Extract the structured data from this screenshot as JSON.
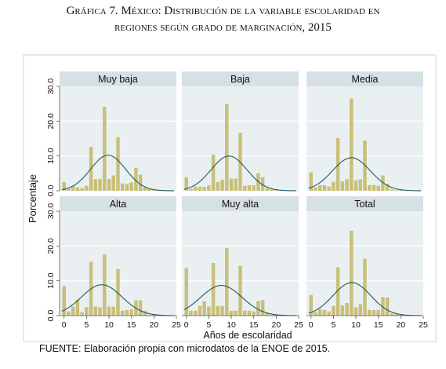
{
  "title_lines": [
    "Gráfica 7. México: Distribución de la variable escolaridad en",
    "regiones según grado de marginación, 2015"
  ],
  "source": "FUENTE: Elaboración propia con microdatos de la ENOE de 2015.",
  "colors": {
    "bar": "#c9bf79",
    "curve": "#1f5b5b",
    "panel_bg": "#eaf0f2",
    "strip_bg": "#d6e1e6"
  },
  "chart_data": {
    "type": "bar",
    "ylabel": "Porcentaje",
    "xlabel": "Años de escolaridad",
    "xlim": [
      -1,
      25
    ],
    "ylim": [
      0,
      30
    ],
    "xticks": [
      0,
      5,
      10,
      15,
      20,
      25
    ],
    "yticks": [
      "0.0",
      "10.0",
      "20.0",
      "30.0"
    ],
    "x": [
      0,
      1,
      2,
      3,
      4,
      5,
      6,
      7,
      8,
      9,
      10,
      11,
      12,
      13,
      14,
      15,
      16,
      17,
      18,
      19,
      20,
      21,
      22,
      23,
      24
    ],
    "grid": true,
    "panels": [
      {
        "name": "Muy baja",
        "mean": 9.8,
        "sd": 3.9,
        "values": [
          2.5,
          0.6,
          1.4,
          1.0,
          0.8,
          1.4,
          12.6,
          3.3,
          3.4,
          24.1,
          3.4,
          4.4,
          15.4,
          2.1,
          1.9,
          2.4,
          6.6,
          4.6,
          1.0,
          0.6,
          0.2,
          0,
          0,
          0,
          0
        ]
      },
      {
        "name": "Baja",
        "mean": 9.5,
        "sd": 4.0,
        "values": [
          3.9,
          0.5,
          1.2,
          1.2,
          1.1,
          1.6,
          10.4,
          2.5,
          3.1,
          25.0,
          3.5,
          3.5,
          16.7,
          1.4,
          1.6,
          1.6,
          5.1,
          3.9,
          0.7,
          0.4,
          0.2,
          0,
          0,
          0,
          0
        ]
      },
      {
        "name": "Media",
        "mean": 9.0,
        "sd": 4.2,
        "values": [
          5.3,
          1.0,
          1.6,
          1.6,
          1.2,
          2.6,
          15.1,
          2.7,
          3.3,
          26.5,
          3.0,
          3.3,
          14.4,
          1.6,
          1.6,
          1.4,
          4.4,
          2.0,
          0.4,
          0.2,
          0.2,
          0,
          0,
          0,
          0
        ]
      },
      {
        "name": "Alta",
        "mean": 8.4,
        "sd": 4.5,
        "values": [
          8.5,
          1.2,
          2.6,
          4.6,
          1.0,
          2.4,
          15.5,
          2.6,
          2.4,
          17.6,
          2.6,
          2.6,
          13.4,
          1.4,
          1.6,
          1.8,
          4.4,
          4.4,
          1.4,
          0.2,
          0.2,
          0,
          0,
          0,
          0
        ]
      },
      {
        "name": "Muy alta",
        "mean": 7.8,
        "sd": 4.6,
        "values": [
          13.7,
          1.4,
          1.4,
          2.8,
          4.1,
          2.6,
          15.1,
          2.8,
          2.8,
          19.4,
          1.4,
          1.4,
          14.3,
          1.4,
          1.4,
          1.2,
          4.2,
          4.5,
          0.7,
          0.2,
          0.2,
          0,
          0,
          0,
          0
        ]
      },
      {
        "name": "Total",
        "mean": 9.1,
        "sd": 4.2,
        "values": [
          5.9,
          1.0,
          1.9,
          1.6,
          1.2,
          2.8,
          13.9,
          2.9,
          3.6,
          24.4,
          2.4,
          3.3,
          16.3,
          1.6,
          1.6,
          1.6,
          5.3,
          5.2,
          0.6,
          0.4,
          0.2,
          0,
          0,
          0,
          0
        ]
      }
    ]
  }
}
